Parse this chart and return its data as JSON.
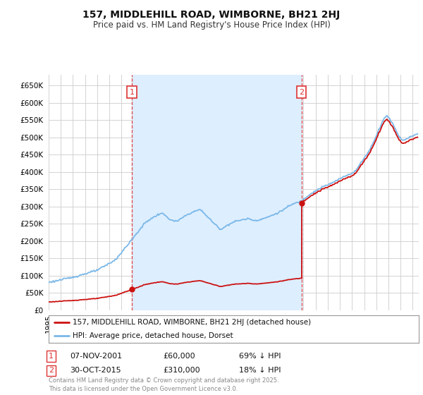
{
  "title": "157, MIDDLEHILL ROAD, WIMBORNE, BH21 2HJ",
  "subtitle": "Price paid vs. HM Land Registry's House Price Index (HPI)",
  "ylim": [
    0,
    680000
  ],
  "yticks": [
    0,
    50000,
    100000,
    150000,
    200000,
    250000,
    300000,
    350000,
    400000,
    450000,
    500000,
    550000,
    600000,
    650000
  ],
  "xlim_start": 1995.0,
  "xlim_end": 2025.5,
  "background_color": "#ffffff",
  "grid_color": "#cccccc",
  "shade_color": "#ddeeff",
  "purchase1_year": 2001.85,
  "purchase1_price": 60000,
  "purchase2_year": 2015.83,
  "purchase2_price": 310000,
  "legend_property": "157, MIDDLEHILL ROAD, WIMBORNE, BH21 2HJ (detached house)",
  "legend_hpi": "HPI: Average price, detached house, Dorset",
  "ann1_date": "07-NOV-2001",
  "ann1_price": "£60,000",
  "ann1_hpi": "69% ↓ HPI",
  "ann2_date": "30-OCT-2015",
  "ann2_price": "£310,000",
  "ann2_hpi": "18% ↓ HPI",
  "footer": "Contains HM Land Registry data © Crown copyright and database right 2025.\nThis data is licensed under the Open Government Licence v3.0.",
  "hpi_color": "#7ab8e8",
  "property_color": "#cc1111",
  "vline_color": "#dd3333"
}
